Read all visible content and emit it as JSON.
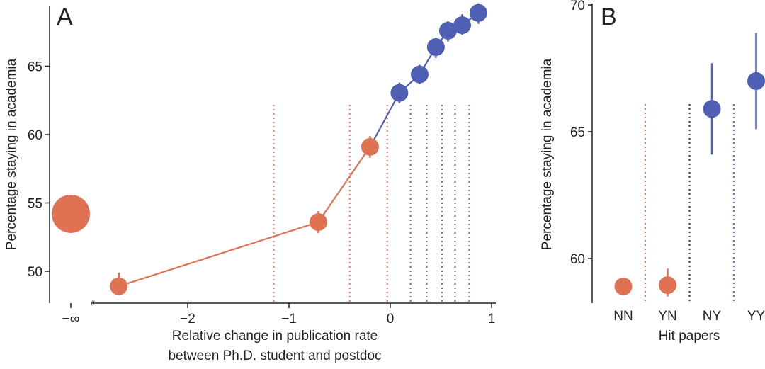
{
  "colors": {
    "orange": "#df7253",
    "blue": "#4f5fb3",
    "axis": "#222222"
  },
  "chart_data": [
    {
      "panel": "A",
      "type": "scatter",
      "title": "",
      "ylabel": "Percentage staying in academia",
      "xlabel_lines": [
        "Relative change in publication rate",
        "between Ph.D. student and postdoc"
      ],
      "xlim": [
        -2.85,
        1
      ],
      "ylim": [
        47.7,
        69.4
      ],
      "xticks": [
        {
          "v": -2,
          "label": "−2"
        },
        {
          "v": -1,
          "label": "−1"
        },
        {
          "v": 0,
          "label": "0"
        },
        {
          "v": 1,
          "label": "1"
        }
      ],
      "neg_inf_label": "−∞",
      "yticks": [
        {
          "v": 50,
          "label": "50"
        },
        {
          "v": 55,
          "label": "55"
        },
        {
          "v": 60,
          "label": "60"
        },
        {
          "v": 65,
          "label": "65"
        }
      ],
      "neg_inf_point": {
        "y": 54.2,
        "color": "orange"
      },
      "points": [
        {
          "x": -2.68,
          "y": 48.9,
          "lo": 48.3,
          "hi": 49.9,
          "color": "orange"
        },
        {
          "x": -0.71,
          "y": 53.6,
          "lo": 52.8,
          "hi": 54.4,
          "color": "orange"
        },
        {
          "x": -0.2,
          "y": 59.1,
          "lo": 58.3,
          "hi": 59.9,
          "color": "orange"
        },
        {
          "x": 0.09,
          "y": 63.05,
          "lo": 62.3,
          "hi": 63.8,
          "color": "blue"
        },
        {
          "x": 0.29,
          "y": 64.4,
          "lo": 63.7,
          "hi": 65.1,
          "color": "blue"
        },
        {
          "x": 0.45,
          "y": 66.4,
          "lo": 65.6,
          "hi": 67.1,
          "color": "blue"
        },
        {
          "x": 0.57,
          "y": 67.6,
          "lo": 66.8,
          "hi": 68.3,
          "color": "blue"
        },
        {
          "x": 0.71,
          "y": 68.0,
          "lo": 67.3,
          "hi": 68.8,
          "color": "blue"
        },
        {
          "x": 0.87,
          "y": 68.9,
          "lo": 68.1,
          "hi": 69.6,
          "color": "blue"
        }
      ],
      "boundaries": [
        {
          "x": -1.15,
          "color": "orange"
        },
        {
          "x": -0.4,
          "color": "orange"
        },
        {
          "x": -0.03,
          "color": "orange"
        },
        {
          "x": 0.2,
          "color": "blue"
        },
        {
          "x": 0.36,
          "color": "blue"
        },
        {
          "x": 0.51,
          "color": "blue"
        },
        {
          "x": 0.64,
          "color": "blue"
        },
        {
          "x": 0.78,
          "color": "blue"
        }
      ]
    },
    {
      "panel": "B",
      "type": "scatter",
      "title": "",
      "ylabel": "Percentage staying in academia",
      "xlabel": "Hit papers",
      "ylim": [
        58.2,
        70
      ],
      "yticks": [
        {
          "v": 60,
          "label": "60"
        },
        {
          "v": 65,
          "label": "65"
        },
        {
          "v": 70,
          "label": "70"
        }
      ],
      "categories": [
        "NN",
        "YN",
        "NY",
        "YY"
      ],
      "points": [
        {
          "cat": "NN",
          "y": 58.9,
          "lo": 58.9,
          "hi": 58.9,
          "color": "orange"
        },
        {
          "cat": "YN",
          "y": 58.95,
          "lo": 58.5,
          "hi": 59.6,
          "color": "orange"
        },
        {
          "cat": "NY",
          "y": 65.9,
          "lo": 64.1,
          "hi": 67.7,
          "color": "blue"
        },
        {
          "cat": "YY",
          "y": 67.0,
          "lo": 65.1,
          "hi": 68.9,
          "color": "blue"
        }
      ],
      "separators": [
        "orange",
        "black",
        "blue"
      ]
    }
  ]
}
